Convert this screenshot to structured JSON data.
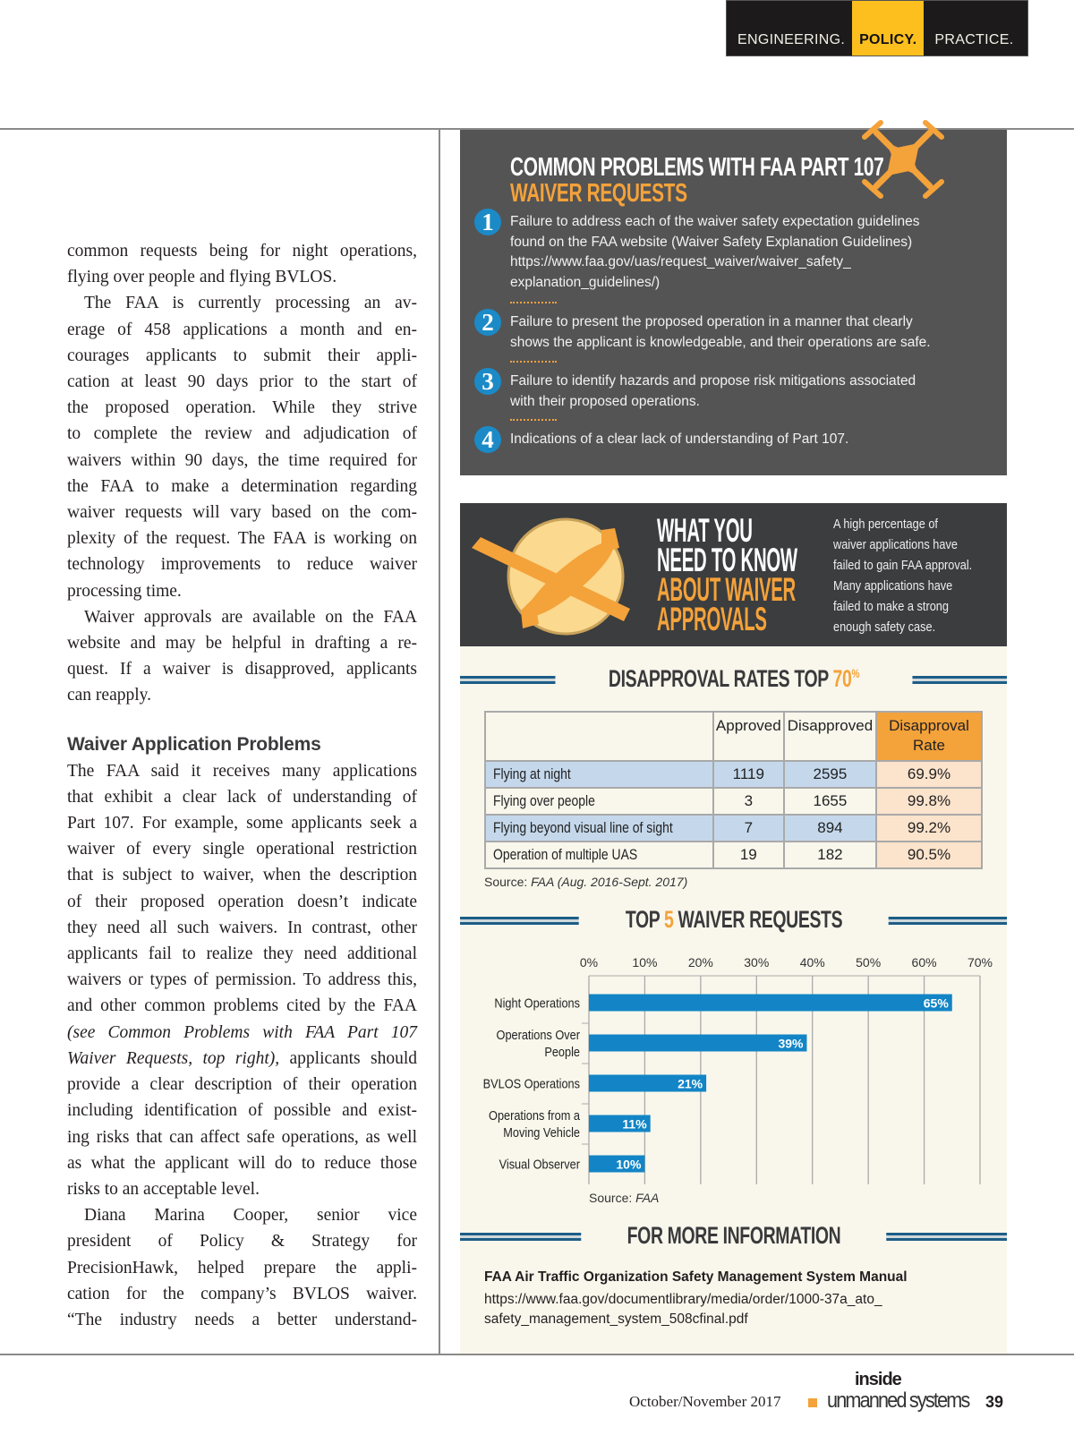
{
  "header": {
    "tags": [
      "ENGINEERING.",
      "POLICY.",
      "PRACTICE."
    ],
    "highlight_color": "#fcbf1e"
  },
  "left_column": {
    "para1": [
      "common requests being for night operations,",
      "flying over people and flying BVLOS."
    ],
    "para2": [
      "The FAA is currently processing an av-",
      "erage of 458 applications a month and en-",
      "courages applicants to submit their appli-",
      "cation at least 90 days prior to the start of",
      "the proposed operation. While they strive",
      "to complete the review and adjudication of",
      "waivers within 90 days, the time required for",
      "the FAA to make a determination regarding",
      "waiver requests will vary based on the com-",
      "plexity of the request. The FAA is working on",
      "technology improvements to reduce waiver",
      "processing time."
    ],
    "para3": [
      "Waiver approvals are available on the FAA",
      "website and may be helpful in drafting a re-",
      "quest. If a waiver is disapproved, applicants",
      "can reapply."
    ],
    "heading": "Waiver Application Problems",
    "para4a": [
      "The FAA said it receives many applications",
      "that exhibit a clear lack of understanding of",
      "Part 107. For example, some applicants seek a",
      "waiver of every single operational restriction",
      "that is subject to waiver, when the description",
      "of their proposed operation doesn’t indicate",
      "they need all such waivers. In contrast, other",
      "applicants fail to realize they need additional",
      "waivers or types of permission. To address this,",
      "and other common problems cited by the FAA"
    ],
    "para4_italic1": "(see Common Problems with FAA Part 107",
    "para4_italic2": "Waiver Requests, top right),",
    "para4_after_italic": " applicants should",
    "para4b": [
      "provide a clear description of their operation",
      "including identification of possible and exist-",
      "ing risks that can affect safe operations, as well",
      "as what the applicant will do to reduce those",
      "risks to an acceptable level."
    ],
    "para5": [
      "Diana Marina Cooper, senior vice",
      "president of Policy & Strategy for",
      "PrecisionHawk, helped prepare the appli-",
      "cation for the company’s BVLOS waiver.",
      "“The industry needs a better understand-"
    ]
  },
  "problems_box": {
    "title_line1": "COMMON PROBLEMS WITH FAA PART 107",
    "title_line2": "WAIVER REQUESTS",
    "icon": "drone-icon",
    "items": [
      {
        "num": "1",
        "lines": [
          "Failure to address each of the waiver safety expectation guidelines",
          "found on the FAA website (Waiver Safety Explanation Guidelines)",
          "https://www.faa.gov/uas/request_waiver/waiver_safety_",
          "explanation_guidelines/)"
        ]
      },
      {
        "num": "2",
        "lines": [
          "Failure to present the proposed operation in a manner that clearly",
          "shows the applicant is knowledgeable, and their operations are safe."
        ]
      },
      {
        "num": "3",
        "lines": [
          "Failure to identify hazards and propose risk mitigations associated",
          "with their proposed operations."
        ]
      },
      {
        "num": "4",
        "lines": [
          "Indications of a clear lack of understanding of Part 107."
        ]
      }
    ]
  },
  "know_box": {
    "title": [
      "WHAT YOU",
      "NEED TO KNOW",
      "ABOUT WAIVER",
      "APPROVALS"
    ],
    "icon": "airplane-icon",
    "description": [
      "A high percentage of",
      "waiver applications have",
      "failed to gain FAA approval.",
      "Many applications have",
      "failed to make a strong",
      "enough safety case."
    ]
  },
  "disapproval_section": {
    "heading": "DISAPPROVAL RATES TOP ",
    "heading_highlight": "70",
    "heading_suffix": "%",
    "columns": [
      "",
      "Approved",
      "Disapproved",
      "Disapproval Rate"
    ],
    "rows": [
      {
        "label": "Flying at night",
        "approved": "1119",
        "disapproved": "2595",
        "rate": "69.9%"
      },
      {
        "label": "Flying over people",
        "approved": "3",
        "disapproved": "1655",
        "rate": "99.8%"
      },
      {
        "label": "Flying beyond visual line of sight",
        "approved": "7",
        "disapproved": "894",
        "rate": "99.2%"
      },
      {
        "label": "Operation of multiple UAS",
        "approved": "19",
        "disapproved": "182",
        "rate": "90.5%"
      }
    ],
    "source_label": "Source: ",
    "source_value": "FAA (Aug. 2016-Sept. 2017)"
  },
  "top5_section": {
    "heading_pre": "TOP ",
    "heading_num": "5",
    "heading_post": " WAIVER REQUESTS",
    "source_label": "Source: ",
    "source_value": "FAA"
  },
  "chart_data": {
    "type": "bar",
    "orientation": "horizontal",
    "categories": [
      [
        "Night Operations"
      ],
      [
        "Operations Over",
        "People"
      ],
      [
        "BVLOS Operations"
      ],
      [
        "Operations from a",
        "Moving Vehicle"
      ],
      [
        "Visual Observer"
      ]
    ],
    "values": [
      65,
      39,
      21,
      11,
      10
    ],
    "data_labels": [
      "65%",
      "39%",
      "21%",
      "11%",
      "10%"
    ],
    "xlim": [
      0,
      70
    ],
    "x_ticks": [
      "0%",
      "10%",
      "20%",
      "30%",
      "40%",
      "50%",
      "60%",
      "70%"
    ],
    "x_axis_position": "top",
    "grid": true,
    "bar_color": "#1385c6"
  },
  "more_info": {
    "heading": "FOR MORE INFORMATION",
    "title": "FAA Air Traffic Organization Safety Management System Manual",
    "url_lines": [
      "https://www.faa.gov/documentlibrary/media/order/1000-37a_ato_",
      "safety_management_system_508cfinal.pdf"
    ]
  },
  "footer": {
    "date": "October/November 2017",
    "logo_top": "inside",
    "logo_bottom": "unmanned systems",
    "page": "39"
  },
  "colors": {
    "accent_orange": "#f4a23a",
    "blue": "#1385c6",
    "dark_box": "#545455",
    "cream": "#f9f7ec"
  }
}
